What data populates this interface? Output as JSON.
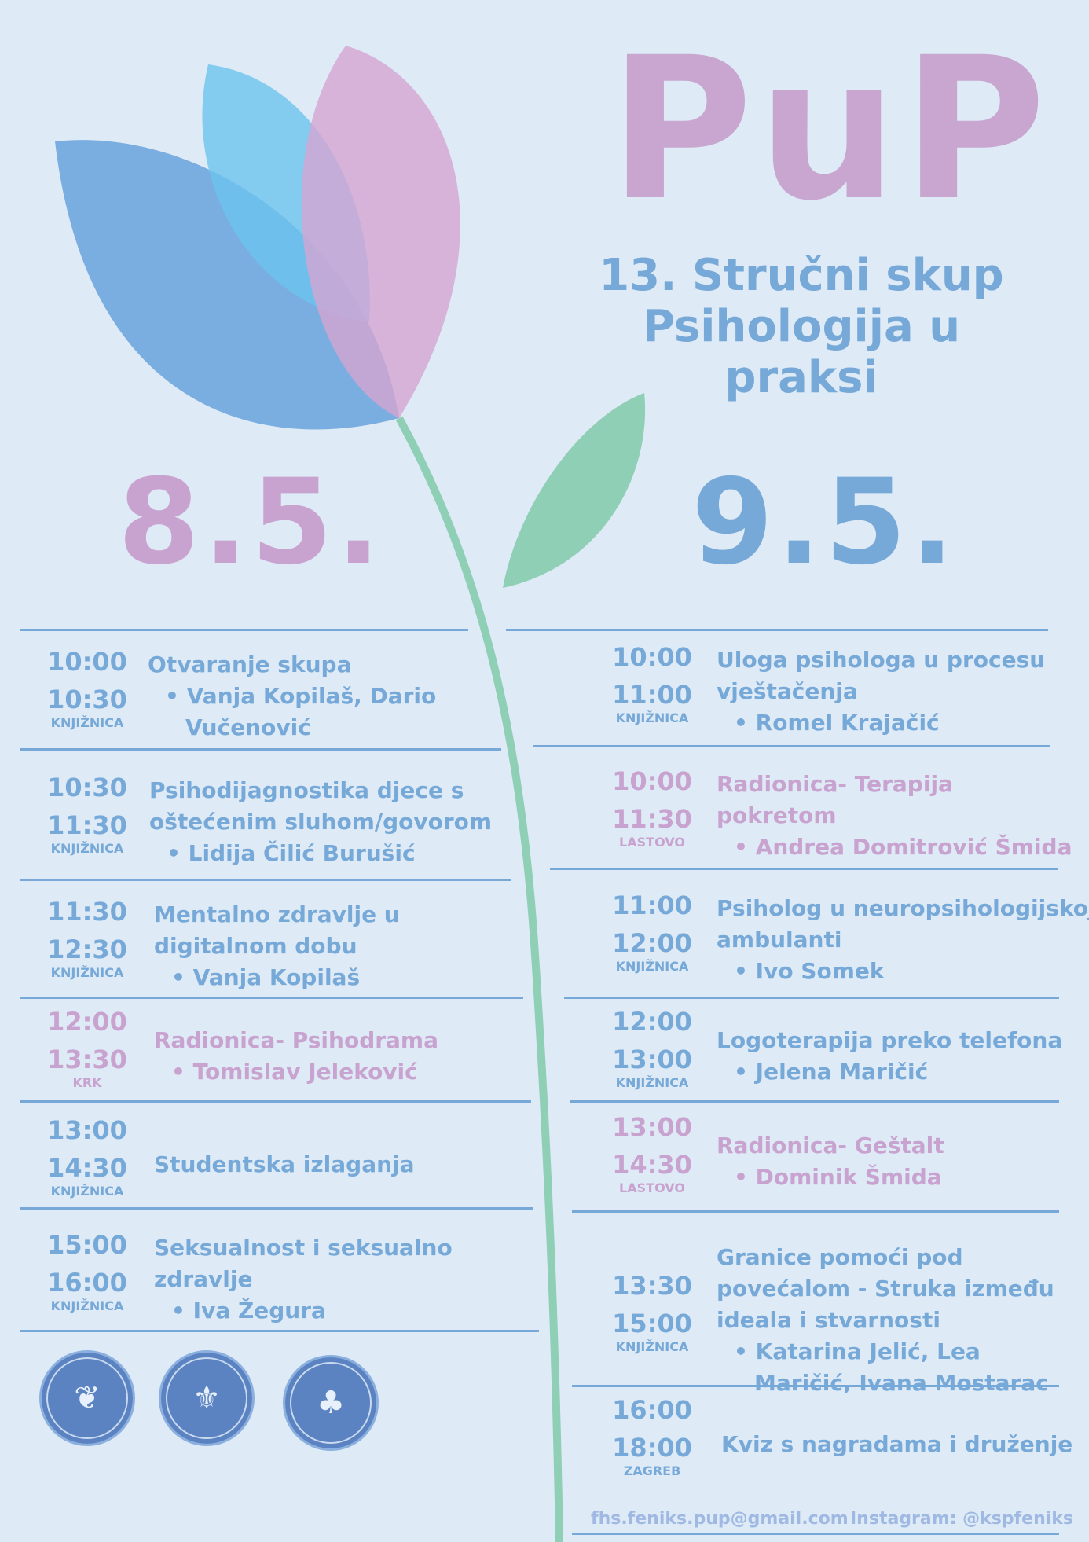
{
  "header": {
    "brand": "PuP",
    "subtitle_line1": "13. Stručni skup",
    "subtitle_line2": "Psihologija u",
    "subtitle_line3": "praksi"
  },
  "days": [
    {
      "date": "8.5."
    },
    {
      "date": "9.5."
    }
  ],
  "day1": [
    {
      "start": "10:00",
      "end": "10:30",
      "location": "KNJIŽNICA",
      "title_lines": [
        "Otvaranje skupa"
      ],
      "speaker_lines": [
        "Vanja Kopilaš, Dario",
        "Vučenović"
      ],
      "workshop": false
    },
    {
      "start": "10:30",
      "end": "11:30",
      "location": "KNJIŽNICA",
      "title_lines": [
        "Psihodijagnostika djece s",
        "oštećenim sluhom/govorom"
      ],
      "speaker_lines": [
        "Lidija Čilić Burušić"
      ],
      "workshop": false
    },
    {
      "start": "11:30",
      "end": "12:30",
      "location": "KNJIŽNICA",
      "title_lines": [
        "Mentalno zdravlje u",
        "digitalnom dobu"
      ],
      "speaker_lines": [
        "Vanja Kopilaš"
      ],
      "workshop": false
    },
    {
      "start": "12:00",
      "end": "13:30",
      "location": "KRK",
      "title_lines": [
        "Radionica- Psihodrama"
      ],
      "speaker_lines": [
        "Tomislav Jeleković"
      ],
      "workshop": true
    },
    {
      "start": "13:00",
      "end": "14:30",
      "location": "KNJIŽNICA",
      "title_lines": [
        "Studentska izlaganja"
      ],
      "speaker_lines": [],
      "workshop": false
    },
    {
      "start": "15:00",
      "end": "16:00",
      "location": "KNJIŽNICA",
      "title_lines": [
        "Seksualnost i seksualno",
        "zdravlje"
      ],
      "speaker_lines": [
        "Iva Žegura"
      ],
      "workshop": false
    }
  ],
  "day2": [
    {
      "start": "10:00",
      "end": "11:00",
      "location": "KNJIŽNICA",
      "title_lines": [
        "Uloga psihologa u procesu",
        "vještačenja"
      ],
      "speaker_lines": [
        "Romel Krajačić"
      ],
      "workshop": false
    },
    {
      "start": "10:00",
      "end": "11:30",
      "location": "LASTOVO",
      "title_lines": [
        "Radionica- Terapija",
        "pokretom"
      ],
      "speaker_lines": [
        "Andrea Domitrović Šmida"
      ],
      "workshop": true
    },
    {
      "start": "11:00",
      "end": "12:00",
      "location": "KNJIŽNICA",
      "title_lines": [
        "Psiholog u neuropsihologijskoj",
        "ambulanti"
      ],
      "speaker_lines": [
        "Ivo Somek"
      ],
      "workshop": false
    },
    {
      "start": "12:00",
      "end": "13:00",
      "location": "KNJIŽNICA",
      "title_lines": [
        "Logoterapija preko telefona"
      ],
      "speaker_lines": [
        "Jelena Maričić"
      ],
      "workshop": false
    },
    {
      "start": "13:00",
      "end": "14:30",
      "location": "LASTOVO",
      "title_lines": [
        "Radionica- Geštalt"
      ],
      "speaker_lines": [
        "Dominik Šmida"
      ],
      "workshop": true
    },
    {
      "start": "13:30",
      "end": "15:00",
      "location": "KNJIŽNICA",
      "title_lines": [
        "Granice pomoći pod",
        "povećalom - Struka između",
        "ideala i stvarnosti"
      ],
      "speaker_lines": [
        "Katarina Jelić, Lea",
        "Maričić, Ivana Mostarac"
      ],
      "workshop": false
    },
    {
      "start": "16:00",
      "end": "18:00",
      "location": "ZAGREB",
      "title_lines": [
        "Kviz s nagradama i druženje"
      ],
      "speaker_lines": [],
      "workshop": false
    }
  ],
  "footer": {
    "email": "fhs.feniks.pup@gmail.com",
    "instagram": "Instagram: @kspfeniks"
  },
  "logos": [
    {
      "icon": "phoenix-seal-icon"
    },
    {
      "icon": "faculty-crest-seal-icon"
    },
    {
      "icon": "tree-seal-icon"
    }
  ],
  "colors": {
    "background": "#deeaf6",
    "blue": "#77a9d8",
    "pink": "#c9a3cf",
    "leaf": "#8ecfb5"
  }
}
